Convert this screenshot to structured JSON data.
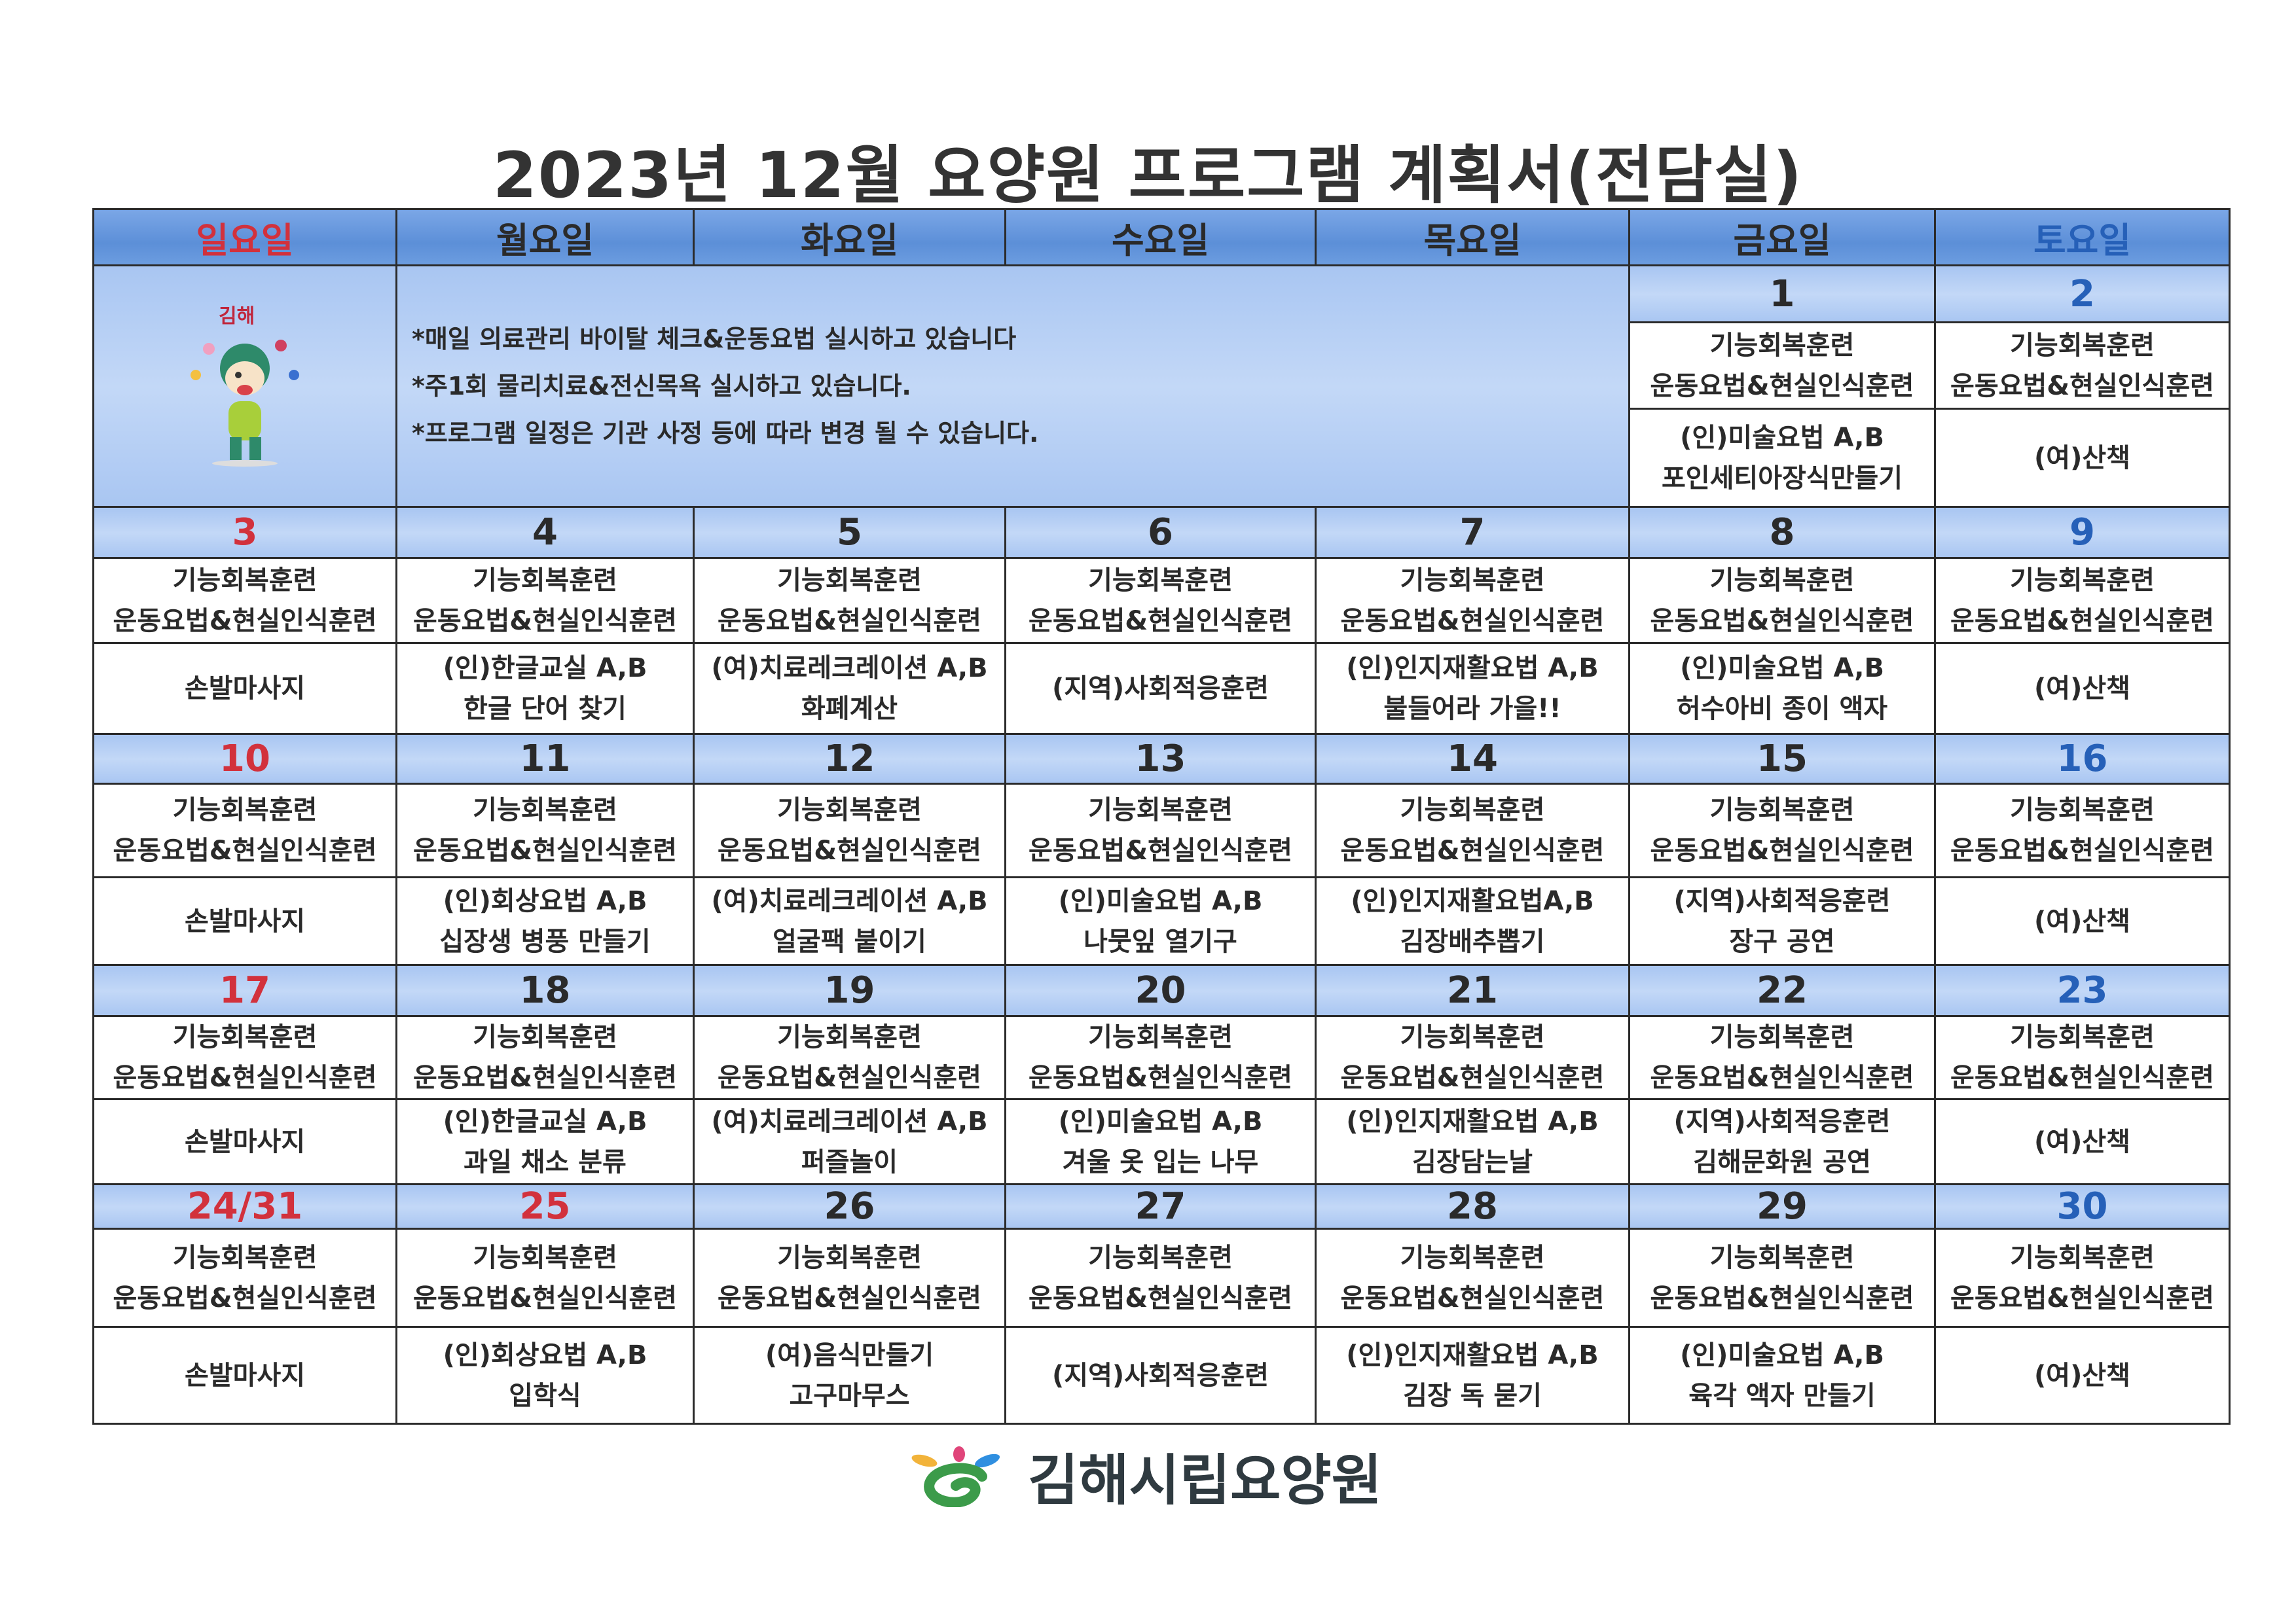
{
  "title": "2023년 12월 요양원 프로그램 계획서(전담실)",
  "weekdays": [
    "일요일",
    "월요일",
    "화요일",
    "수요일",
    "목요일",
    "금요일",
    "토요일"
  ],
  "colors": {
    "header_bg": "#5c8fd8",
    "date_row_bg": "#b8d0f4",
    "sunday": "#d2313c",
    "saturday": "#2660b8",
    "text": "#2a2a2a"
  },
  "notes": [
    "*매일 의료관리 바이탈 체크&운동요법 실시하고 있습니다",
    "*주1회 물리치료&전신목욕 실시하고 있습니다.",
    "*프로그램 일정은 기관 사정 등에 따라 변경 될 수    있습니다."
  ],
  "mascot_logo_text": "김해",
  "weeks": [
    {
      "days": [
        null,
        null,
        null,
        null,
        null,
        {
          "date": "1",
          "row1": [
            "기능회복훈련",
            "운동요법&현실인식훈련"
          ],
          "row2": [
            "(인)미술요법 A,B",
            "포인세티아장식만들기"
          ]
        },
        {
          "date": "2",
          "row1": [
            "기능회복훈련",
            "운동요법&현실인식훈련"
          ],
          "row2": [
            "(여)산책"
          ]
        }
      ]
    },
    {
      "days": [
        {
          "date": "3",
          "row1": [
            "기능회복훈련",
            "운동요법&현실인식훈련"
          ],
          "row2": [
            "손발마사지"
          ]
        },
        {
          "date": "4",
          "row1": [
            "기능회복훈련",
            "운동요법&현실인식훈련"
          ],
          "row2": [
            "(인)한글교실 A,B",
            "한글 단어 찾기"
          ]
        },
        {
          "date": "5",
          "row1": [
            "기능회복훈련",
            "운동요법&현실인식훈련"
          ],
          "row2": [
            "(여)치료레크레이션 A,B",
            "화폐계산"
          ]
        },
        {
          "date": "6",
          "row1": [
            "기능회복훈련",
            "운동요법&현실인식훈련"
          ],
          "row2": [
            "(지역)사회적응훈련"
          ]
        },
        {
          "date": "7",
          "row1": [
            "기능회복훈련",
            "운동요법&현실인식훈련"
          ],
          "row2": [
            "(인)인지재활요법 A,B",
            "불들어라 가을!!"
          ]
        },
        {
          "date": "8",
          "row1": [
            "기능회복훈련",
            "운동요법&현실인식훈련"
          ],
          "row2": [
            "(인)미술요법 A,B",
            "허수아비 종이 액자"
          ]
        },
        {
          "date": "9",
          "row1": [
            "기능회복훈련",
            "운동요법&현실인식훈련"
          ],
          "row2": [
            "(여)산책"
          ]
        }
      ]
    },
    {
      "days": [
        {
          "date": "10",
          "row1": [
            "기능회복훈련",
            "운동요법&현실인식훈련"
          ],
          "row2": [
            "손발마사지"
          ]
        },
        {
          "date": "11",
          "row1": [
            "기능회복훈련",
            "운동요법&현실인식훈련"
          ],
          "row2": [
            "(인)회상요법 A,B",
            "십장생 병풍 만들기"
          ]
        },
        {
          "date": "12",
          "row1": [
            "기능회복훈련",
            "운동요법&현실인식훈련"
          ],
          "row2": [
            "(여)치료레크레이션 A,B",
            "얼굴팩 붙이기"
          ]
        },
        {
          "date": "13",
          "row1": [
            "기능회복훈련",
            "운동요법&현실인식훈련"
          ],
          "row2": [
            "(인)미술요법 A,B",
            "나뭇잎 열기구"
          ]
        },
        {
          "date": "14",
          "row1": [
            "기능회복훈련",
            "운동요법&현실인식훈련"
          ],
          "row2": [
            "(인)인지재활요법A,B",
            "김장배추뽑기"
          ]
        },
        {
          "date": "15",
          "row1": [
            "기능회복훈련",
            "운동요법&현실인식훈련"
          ],
          "row2": [
            "(지역)사회적응훈련",
            "장구 공연"
          ]
        },
        {
          "date": "16",
          "row1": [
            "기능회복훈련",
            "운동요법&현실인식훈련"
          ],
          "row2": [
            "(여)산책"
          ]
        }
      ]
    },
    {
      "days": [
        {
          "date": "17",
          "row1": [
            "기능회복훈련",
            "운동요법&현실인식훈련"
          ],
          "row2": [
            "손발마사지"
          ]
        },
        {
          "date": "18",
          "row1": [
            "기능회복훈련",
            "운동요법&현실인식훈련"
          ],
          "row2": [
            "(인)한글교실 A,B",
            "과일 채소 분류"
          ]
        },
        {
          "date": "19",
          "row1": [
            "기능회복훈련",
            "운동요법&현실인식훈련"
          ],
          "row2": [
            "(여)치료레크레이션 A,B",
            "퍼즐놀이"
          ]
        },
        {
          "date": "20",
          "row1": [
            "기능회복훈련",
            "운동요법&현실인식훈련"
          ],
          "row2": [
            "(인)미술요법 A,B",
            "겨울 옷 입는 나무"
          ]
        },
        {
          "date": "21",
          "row1": [
            "기능회복훈련",
            "운동요법&현실인식훈련"
          ],
          "row2": [
            "(인)인지재활요법 A,B",
            "김장담는날"
          ]
        },
        {
          "date": "22",
          "row1": [
            "기능회복훈련",
            "운동요법&현실인식훈련"
          ],
          "row2": [
            "(지역)사회적응훈련",
            "김해문화원 공연"
          ]
        },
        {
          "date": "23",
          "row1": [
            "기능회복훈련",
            "운동요법&현실인식훈련"
          ],
          "row2": [
            "(여)산책"
          ]
        }
      ]
    },
    {
      "days": [
        {
          "date": "24/31",
          "row1": [
            "기능회복훈련",
            "운동요법&현실인식훈련"
          ],
          "row2": [
            "손발마사지"
          ]
        },
        {
          "date": "25",
          "holiday": true,
          "row1": [
            "기능회복훈련",
            "운동요법&현실인식훈련"
          ],
          "row2": [
            "(인)회상요법 A,B",
            "입학식"
          ]
        },
        {
          "date": "26",
          "row1": [
            "기능회복훈련",
            "운동요법&현실인식훈련"
          ],
          "row2": [
            "(여)음식만들기",
            "고구마무스"
          ]
        },
        {
          "date": "27",
          "row1": [
            "기능회복훈련",
            "운동요법&현실인식훈련"
          ],
          "row2": [
            "(지역)사회적응훈련"
          ]
        },
        {
          "date": "28",
          "row1": [
            "기능회복훈련",
            "운동요법&현실인식훈련"
          ],
          "row2": [
            "(인)인지재활요법 A,B",
            "김장 독 묻기"
          ]
        },
        {
          "date": "29",
          "row1": [
            "기능회복훈련",
            "운동요법&현실인식훈련"
          ],
          "row2": [
            "(인)미술요법 A,B",
            "육각 액자 만들기"
          ]
        },
        {
          "date": "30",
          "row1": [
            "기능회복훈련",
            "운동요법&현실인식훈련"
          ],
          "row2": [
            "(여)산책"
          ]
        }
      ]
    }
  ],
  "footer": {
    "org_name": "김해시립요양원"
  }
}
